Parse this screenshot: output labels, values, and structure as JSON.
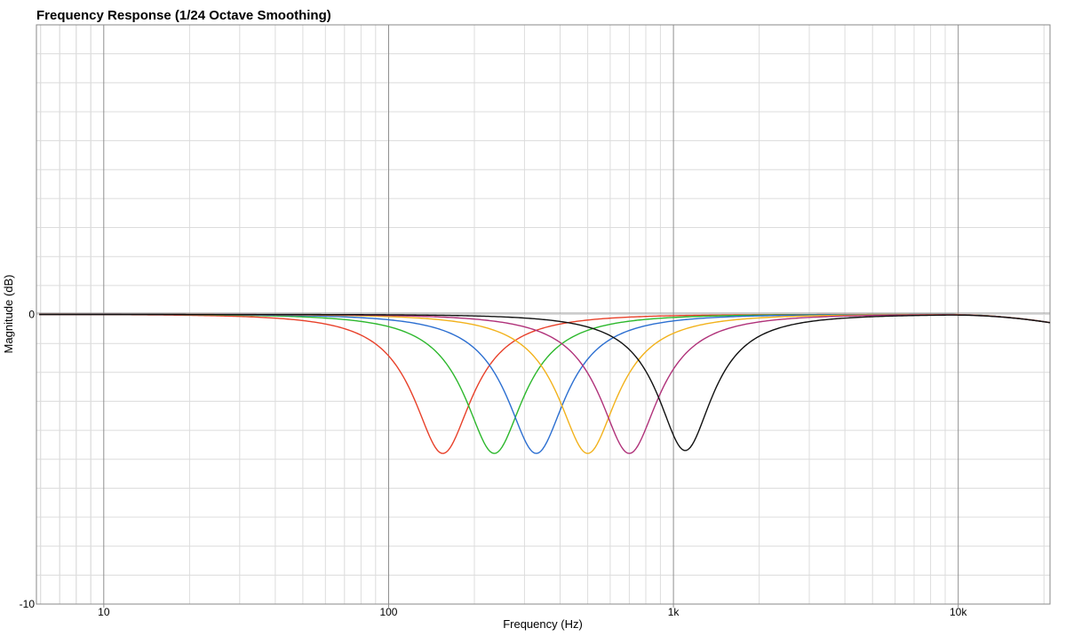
{
  "chart_data": {
    "type": "line",
    "title": "Frequency Response (1/24 Octave Smoothing)",
    "xlabel": "Frequency (Hz)",
    "ylabel": "Magnitude (dB)",
    "x_scale": "log",
    "xlim": [
      5.8,
      21000
    ],
    "ylim": [
      -10,
      10
    ],
    "x_tick_labels": [
      {
        "value": 10,
        "label": "10"
      },
      {
        "value": 100,
        "label": "100"
      },
      {
        "value": 1000,
        "label": "1k"
      },
      {
        "value": 10000,
        "label": "10k"
      }
    ],
    "y_tick_labels": [
      {
        "value": 0,
        "label": "0"
      },
      {
        "value": -10,
        "label": "-10"
      }
    ],
    "grid": true,
    "legend": "none",
    "series": [
      {
        "color": "#e8412a",
        "center_hz": 155,
        "min_db": -4.8,
        "q": 1.3,
        "points": [
          [
            6,
            0
          ],
          [
            20,
            -0.02
          ],
          [
            50,
            -0.25
          ],
          [
            80,
            -1.0
          ],
          [
            100,
            -2.2
          ],
          [
            120,
            -3.6
          ],
          [
            140,
            -4.5
          ],
          [
            155,
            -4.8
          ],
          [
            175,
            -4.5
          ],
          [
            200,
            -3.5
          ],
          [
            260,
            -2.0
          ],
          [
            350,
            -1.0
          ],
          [
            500,
            -0.45
          ],
          [
            1000,
            -0.1
          ],
          [
            3000,
            -0.02
          ],
          [
            10000,
            -0.02
          ],
          [
            21000,
            -0.25
          ]
        ]
      },
      {
        "color": "#2db82d",
        "center_hz": 235,
        "min_db": -4.8,
        "q": 1.3,
        "points": [
          [
            6,
            0
          ],
          [
            30,
            -0.02
          ],
          [
            80,
            -0.3
          ],
          [
            120,
            -1.0
          ],
          [
            160,
            -2.4
          ],
          [
            200,
            -3.9
          ],
          [
            235,
            -4.8
          ],
          [
            270,
            -4.4
          ],
          [
            320,
            -3.4
          ],
          [
            400,
            -2.0
          ],
          [
            550,
            -1.0
          ],
          [
            800,
            -0.45
          ],
          [
            1500,
            -0.12
          ],
          [
            4000,
            -0.02
          ],
          [
            10000,
            -0.02
          ],
          [
            21000,
            -0.25
          ]
        ]
      },
      {
        "color": "#2c6fd1",
        "center_hz": 330,
        "min_db": -4.8,
        "q": 1.3,
        "points": [
          [
            6,
            0
          ],
          [
            40,
            -0.02
          ],
          [
            100,
            -0.3
          ],
          [
            170,
            -1.0
          ],
          [
            230,
            -2.4
          ],
          [
            280,
            -3.9
          ],
          [
            330,
            -4.8
          ],
          [
            380,
            -4.4
          ],
          [
            450,
            -3.4
          ],
          [
            560,
            -2.0
          ],
          [
            780,
            -1.0
          ],
          [
            1100,
            -0.45
          ],
          [
            2000,
            -0.12
          ],
          [
            5000,
            -0.02
          ],
          [
            10000,
            -0.02
          ],
          [
            21000,
            -0.25
          ]
        ]
      },
      {
        "color": "#f2b21c",
        "center_hz": 500,
        "min_db": -4.8,
        "q": 1.3,
        "points": [
          [
            6,
            0
          ],
          [
            60,
            -0.02
          ],
          [
            150,
            -0.3
          ],
          [
            250,
            -1.0
          ],
          [
            340,
            -2.4
          ],
          [
            420,
            -3.9
          ],
          [
            500,
            -4.8
          ],
          [
            570,
            -4.4
          ],
          [
            670,
            -3.4
          ],
          [
            830,
            -2.0
          ],
          [
            1150,
            -1.0
          ],
          [
            1700,
            -0.45
          ],
          [
            3000,
            -0.12
          ],
          [
            7000,
            -0.02
          ],
          [
            10000,
            -0.02
          ],
          [
            21000,
            -0.25
          ]
        ]
      },
      {
        "color": "#b0327a",
        "center_hz": 700,
        "min_db": -4.8,
        "q": 1.3,
        "points": [
          [
            6,
            0
          ],
          [
            80,
            -0.02
          ],
          [
            200,
            -0.3
          ],
          [
            350,
            -1.0
          ],
          [
            480,
            -2.4
          ],
          [
            590,
            -3.9
          ],
          [
            700,
            -4.8
          ],
          [
            800,
            -4.4
          ],
          [
            940,
            -3.4
          ],
          [
            1160,
            -2.0
          ],
          [
            1600,
            -1.0
          ],
          [
            2300,
            -0.45
          ],
          [
            4200,
            -0.12
          ],
          [
            9000,
            -0.02
          ],
          [
            21000,
            -0.25
          ]
        ]
      },
      {
        "color": "#111111",
        "center_hz": 1100,
        "min_db": -4.7,
        "q": 1.4,
        "points": [
          [
            6,
            0
          ],
          [
            100,
            -0.02
          ],
          [
            300,
            -0.3
          ],
          [
            550,
            -1.0
          ],
          [
            760,
            -2.4
          ],
          [
            940,
            -3.9
          ],
          [
            1100,
            -4.7
          ],
          [
            1250,
            -4.4
          ],
          [
            1470,
            -3.4
          ],
          [
            1800,
            -2.0
          ],
          [
            2500,
            -1.0
          ],
          [
            3600,
            -0.45
          ],
          [
            6000,
            -0.12
          ],
          [
            10000,
            -0.02
          ],
          [
            21000,
            -0.25
          ]
        ]
      }
    ]
  }
}
